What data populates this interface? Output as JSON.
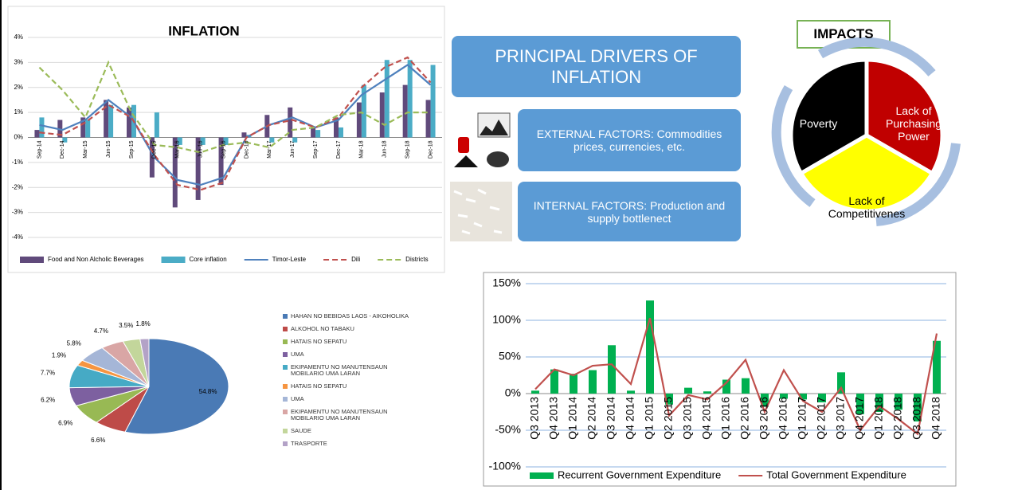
{
  "chart_data": [
    {
      "type": "combo",
      "title": "INFLATION",
      "categories": [
        "Sep-14",
        "Dec-14",
        "Mar-15",
        "Jun-15",
        "Sep-15",
        "Dec-15",
        "Mar-16",
        "Jun-16",
        "Sep-16",
        "Dec-16",
        "Mar-17",
        "Jun-17",
        "Sep-17",
        "Dec-17",
        "Mar-18",
        "Jun-18",
        "Sep-18",
        "Dec-18"
      ],
      "series": [
        {
          "name": "Food and Non Alcholic Beverages",
          "kind": "bar",
          "color": "#604a7b",
          "values": [
            0.3,
            0.7,
            0.8,
            1.5,
            1.2,
            -1.6,
            -2.8,
            -2.5,
            -1.9,
            0.2,
            0.9,
            1.2,
            0.4,
            0.8,
            1.4,
            1.8,
            2.1,
            1.5
          ]
        },
        {
          "name": "Core inflation",
          "kind": "bar",
          "color": "#4bacc6",
          "values": [
            0.8,
            -0.2,
            0.7,
            1.3,
            1.3,
            1.0,
            -0.3,
            -0.3,
            -0.3,
            0.1,
            -0.2,
            -0.2,
            0.3,
            0.4,
            2.1,
            3.1,
            3.1,
            2.9
          ]
        },
        {
          "name": "Timor-Leste",
          "kind": "line",
          "dash": false,
          "color": "#4f81bd",
          "values": [
            0.5,
            0.3,
            0.7,
            1.5,
            0.8,
            -0.8,
            -1.7,
            -1.9,
            -1.6,
            0.0,
            0.5,
            0.8,
            0.4,
            0.7,
            1.7,
            2.3,
            2.9,
            2.1
          ]
        },
        {
          "name": "Dili",
          "kind": "line",
          "dash": true,
          "color": "#c0504d",
          "values": [
            0.2,
            0.1,
            0.6,
            1.3,
            0.8,
            -0.7,
            -1.9,
            -2.1,
            -1.8,
            0.0,
            0.5,
            0.7,
            0.4,
            0.8,
            2.0,
            2.8,
            3.2,
            2.2
          ]
        },
        {
          "name": "Districts",
          "kind": "line",
          "dash": true,
          "color": "#9bbb59",
          "values": [
            2.8,
            1.9,
            0.8,
            3.0,
            1.0,
            -0.3,
            -0.4,
            -0.6,
            -0.3,
            -0.2,
            -0.4,
            0.3,
            0.4,
            0.9,
            1.0,
            0.5,
            1.0,
            1.0
          ]
        }
      ],
      "ylim": [
        -4,
        4
      ],
      "yticks": [
        {
          "value": -4,
          "label": "-4%"
        },
        {
          "value": -3,
          "label": "-3%"
        },
        {
          "value": -2,
          "label": "-2%"
        },
        {
          "value": -1,
          "label": "-1%"
        },
        {
          "value": 0,
          "label": "0%"
        },
        {
          "value": 1,
          "label": "1%"
        },
        {
          "value": 2,
          "label": "2%"
        },
        {
          "value": 3,
          "label": "3%"
        },
        {
          "value": 4,
          "label": "4%"
        }
      ],
      "grid": true,
      "legend": "bottom"
    },
    {
      "type": "pie",
      "categories": [
        "HAHAN NO BEBIDAS LAOS - AIKOHOLIKA",
        "ALKOHOL NO TABAKU",
        "HATAIS NO SEPATU",
        "UMA",
        "EKIPAMENTU NO MANUTENSAUN MOBILARIO UMA LARAN",
        "HATAIS NO SEPATU",
        "UMA",
        "EKIPAMENTU NO MANUTENSAUN MOBILARIO UMA LARAN",
        "SAUDE",
        "TRASPORTE"
      ],
      "values": [
        54.8,
        6.6,
        6.9,
        6.2,
        7.7,
        1.9,
        5.8,
        4.7,
        3.5,
        1.8
      ],
      "value_labels": [
        "54.8%",
        "6.6%",
        "6.9%",
        "6.2%",
        "7.7%",
        "1.9%",
        "5.8%",
        "4.7%",
        "3.5%",
        "1.8%"
      ],
      "colors": [
        "#4a7ab5",
        "#be4b48",
        "#98b954",
        "#7d60a0",
        "#46aac5",
        "#f69541",
        "#a5b6d7",
        "#d9a6a5",
        "#c3d69b",
        "#b3a2c7"
      ],
      "legend": "right"
    },
    {
      "type": "combo",
      "categories": [
        "Q3 2013",
        "Q4 2013",
        "Q1 2014",
        "Q2 2014",
        "Q3 2014",
        "Q4 2014",
        "Q1 2015",
        "Q2 2015",
        "Q3 2015",
        "Q4 2015",
        "Q1 2016",
        "Q2 2016",
        "Q3 2016",
        "Q4 2016",
        "Q1 2017",
        "Q2 2017",
        "Q3 2017",
        "Q4 2017",
        "Q1 2018",
        "Q2 2018",
        "Q3 2018",
        "Q4 2018"
      ],
      "series": [
        {
          "name": "Recurrent Government Expenditure",
          "kind": "bar",
          "color": "#00b050",
          "values": [
            4,
            33,
            27,
            32,
            66,
            4,
            127,
            -15,
            8,
            3,
            19,
            21,
            -18,
            -7,
            -8,
            -12,
            29,
            -28,
            -25,
            -22,
            -38,
            72
          ]
        },
        {
          "name": "Total Government Expenditure",
          "kind": "line",
          "dash": false,
          "color": "#c0504d",
          "values": [
            6,
            33,
            25,
            38,
            40,
            13,
            103,
            -30,
            -2,
            -8,
            15,
            46,
            -25,
            32,
            -10,
            -25,
            8,
            -50,
            -17,
            -35,
            -55,
            82
          ]
        }
      ],
      "ylim": [
        -100,
        150
      ],
      "yticks": [
        {
          "value": -100,
          "label": "-100%"
        },
        {
          "value": -50,
          "label": "-50%"
        },
        {
          "value": 0,
          "label": "0%"
        },
        {
          "value": 50,
          "label": "50%"
        },
        {
          "value": 100,
          "label": "100%"
        },
        {
          "value": 150,
          "label": "150%"
        }
      ],
      "grid": true,
      "legend": "bottom"
    }
  ],
  "drivers": {
    "title": "PRINCIPAL DRIVERS OF INFLATION",
    "items": [
      "EXTERNAL FACTORS: Commodities prices, currencies, etc.",
      "INTERNAL FACTORS: Production and supply bottlenect"
    ]
  },
  "impacts": {
    "title": "IMPACTS",
    "items": [
      "Poverty",
      "Lack of Purchasing Power",
      "Lack of Competitivenes"
    ]
  }
}
